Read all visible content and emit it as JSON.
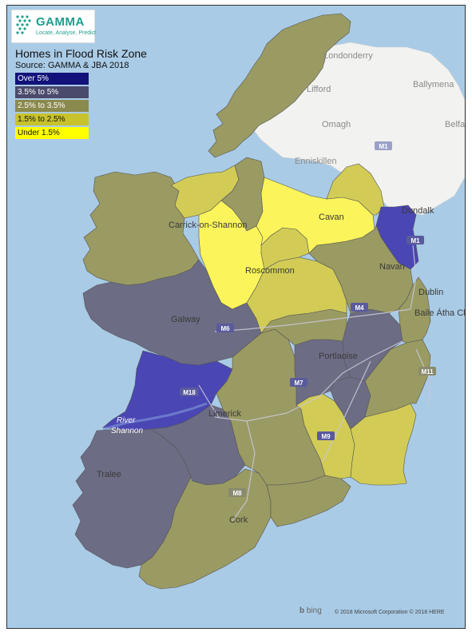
{
  "logo": {
    "name": "GAMMA",
    "tagline": "Locate, Analyse, Predict"
  },
  "legend": {
    "title": "Homes in Flood Risk Zone",
    "source": "Source: GAMMA & JBA 2018",
    "items": [
      {
        "label": "Over 5%",
        "color": "#12127a",
        "text_color": "#ffffff"
      },
      {
        "label": "3.5% to 5%",
        "color": "#4a4a6c",
        "text_color": "#ffffff"
      },
      {
        "label": "2.5% to 3.5%",
        "color": "#8b8a4e",
        "text_color": "#ffffff"
      },
      {
        "label": "1.5% to 2.5%",
        "color": "#c8c22c",
        "text_color": "#111111"
      },
      {
        "label": "Under 1.5%",
        "color": "#ffff00",
        "text_color": "#111111"
      }
    ]
  },
  "fill_colors": {
    "sea": "#a9cbe6",
    "northern_ireland": "#f2f2f0",
    "over_5": "#4a46b4",
    "3_5_to_5": "#6c6c85",
    "2_5_to_3_5": "#9a9a63",
    "1_5_to_2_5": "#d2cc56",
    "under_1_5": "#fbf45a"
  },
  "places": {
    "londonderry": "Londonderry",
    "ballymena": "Ballymena",
    "belfast": "Belfa",
    "omagh": "Omagh",
    "lifford": "Lifford",
    "enniskillen": "Enniskillen",
    "dundalk": "Dundalk",
    "cavan": "Cavan",
    "carrick": "Carrick-on-Shannon",
    "roscommon": "Roscommon",
    "navan": "Navan",
    "dublin": "Dublin",
    "baile": "Baile Átha Cl",
    "galway": "Galway",
    "portlaoise": "Portlaoise",
    "limerick": "Limerick",
    "tralee": "Tralee",
    "cork": "Cork",
    "river": "River",
    "shannon": "Shannon"
  },
  "roads": {
    "m6": "M6",
    "m18": "M18",
    "m7": "M7",
    "m9": "M9",
    "m8": "M8",
    "m1": "M1",
    "m1_ni": "M1",
    "m4": "M4",
    "m11": "M11"
  },
  "attribution": {
    "bing": "bing",
    "copyright": "© 2018 Microsoft Corporation © 2018 HERE"
  }
}
